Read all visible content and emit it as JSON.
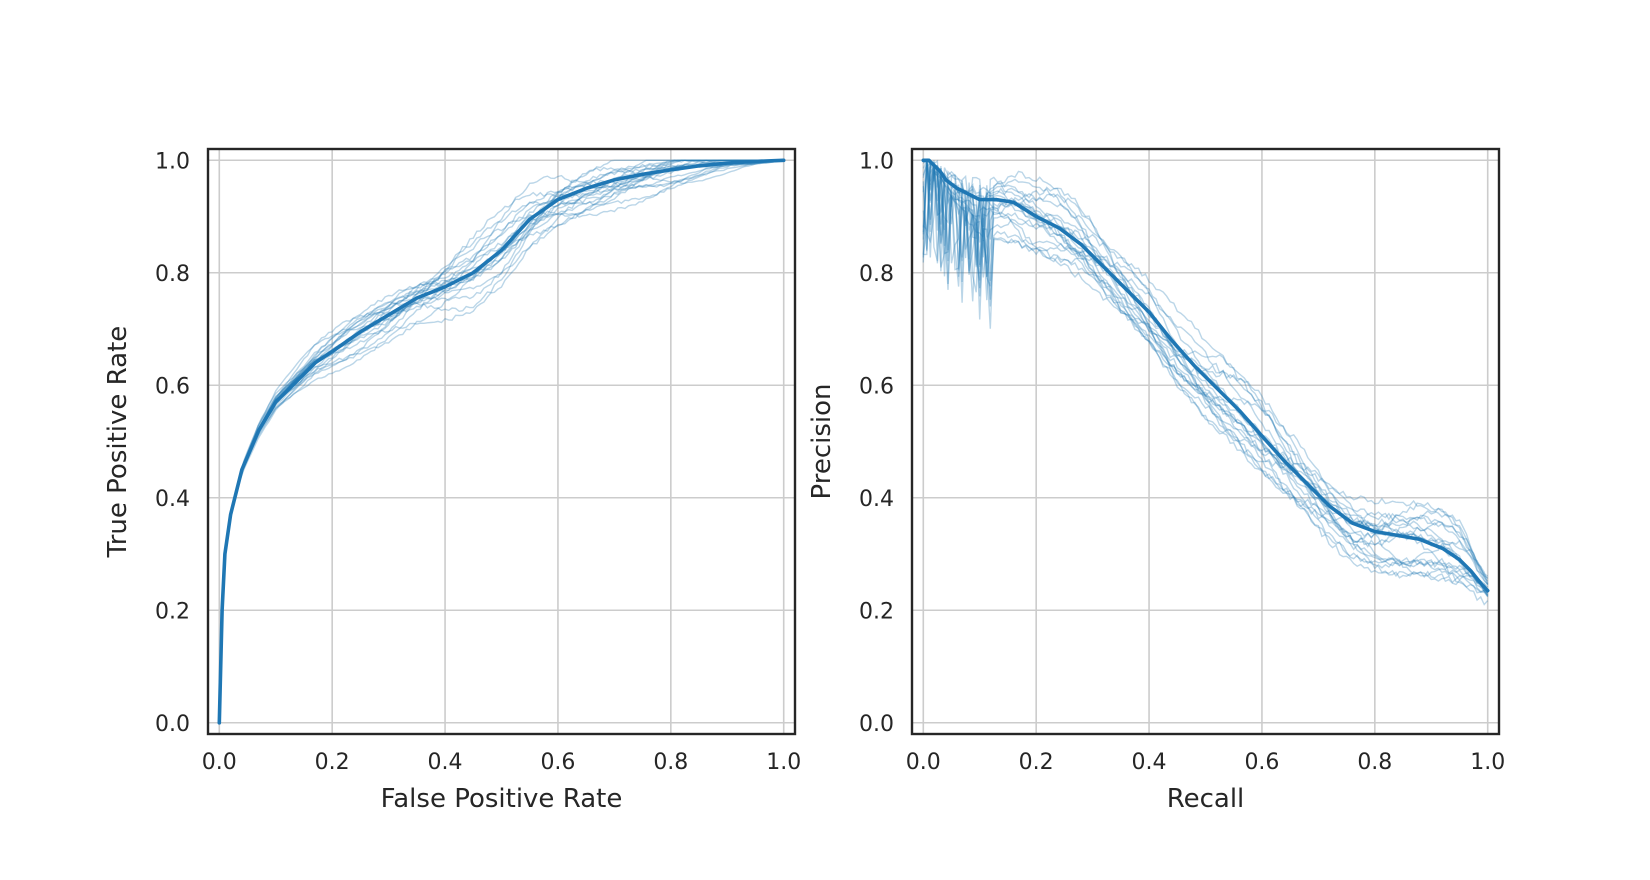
{
  "chart_data": [
    {
      "type": "line",
      "xlabel": "False Positive Rate",
      "ylabel": "True Positive Rate",
      "xlim": [
        -0.02,
        1.02
      ],
      "ylim": [
        -0.02,
        1.02
      ],
      "xticks": [
        "0.0",
        "0.2",
        "0.4",
        "0.6",
        "0.8",
        "1.0"
      ],
      "yticks": [
        "0.0",
        "0.2",
        "0.4",
        "0.6",
        "0.8",
        "1.0"
      ],
      "grid": true,
      "color": "#1f77b4",
      "mean_curve": {
        "x": [
          0.0,
          0.005,
          0.01,
          0.02,
          0.04,
          0.07,
          0.1,
          0.13,
          0.17,
          0.2,
          0.25,
          0.3,
          0.35,
          0.4,
          0.45,
          0.5,
          0.55,
          0.6,
          0.65,
          0.7,
          0.75,
          0.8,
          0.85,
          0.9,
          0.95,
          1.0
        ],
        "y": [
          0.0,
          0.2,
          0.3,
          0.37,
          0.45,
          0.52,
          0.57,
          0.6,
          0.64,
          0.66,
          0.695,
          0.725,
          0.755,
          0.775,
          0.8,
          0.84,
          0.895,
          0.93,
          0.95,
          0.965,
          0.975,
          0.983,
          0.99,
          0.995,
          0.998,
          1.0
        ]
      },
      "fold_count": 20
    },
    {
      "type": "line",
      "xlabel": "Recall",
      "ylabel": "Precision",
      "xlim": [
        -0.02,
        1.02
      ],
      "ylim": [
        -0.02,
        1.02
      ],
      "xticks": [
        "0.0",
        "0.2",
        "0.4",
        "0.6",
        "0.8",
        "1.0"
      ],
      "yticks": [
        "0.0",
        "0.2",
        "0.4",
        "0.6",
        "0.8",
        "1.0"
      ],
      "grid": true,
      "color": "#1f77b4",
      "mean_curve": {
        "x": [
          0.0,
          0.01,
          0.02,
          0.03,
          0.04,
          0.06,
          0.08,
          0.1,
          0.13,
          0.16,
          0.2,
          0.24,
          0.28,
          0.32,
          0.36,
          0.4,
          0.44,
          0.48,
          0.52,
          0.56,
          0.6,
          0.64,
          0.68,
          0.72,
          0.76,
          0.8,
          0.84,
          0.88,
          0.92,
          0.95,
          0.97,
          0.99,
          1.0
        ],
        "y": [
          1.0,
          1.0,
          0.99,
          0.98,
          0.965,
          0.95,
          0.94,
          0.93,
          0.93,
          0.925,
          0.9,
          0.88,
          0.85,
          0.81,
          0.77,
          0.73,
          0.68,
          0.635,
          0.595,
          0.555,
          0.51,
          0.465,
          0.425,
          0.385,
          0.355,
          0.34,
          0.333,
          0.326,
          0.31,
          0.29,
          0.27,
          0.245,
          0.235
        ]
      },
      "fold_count": 20
    }
  ]
}
